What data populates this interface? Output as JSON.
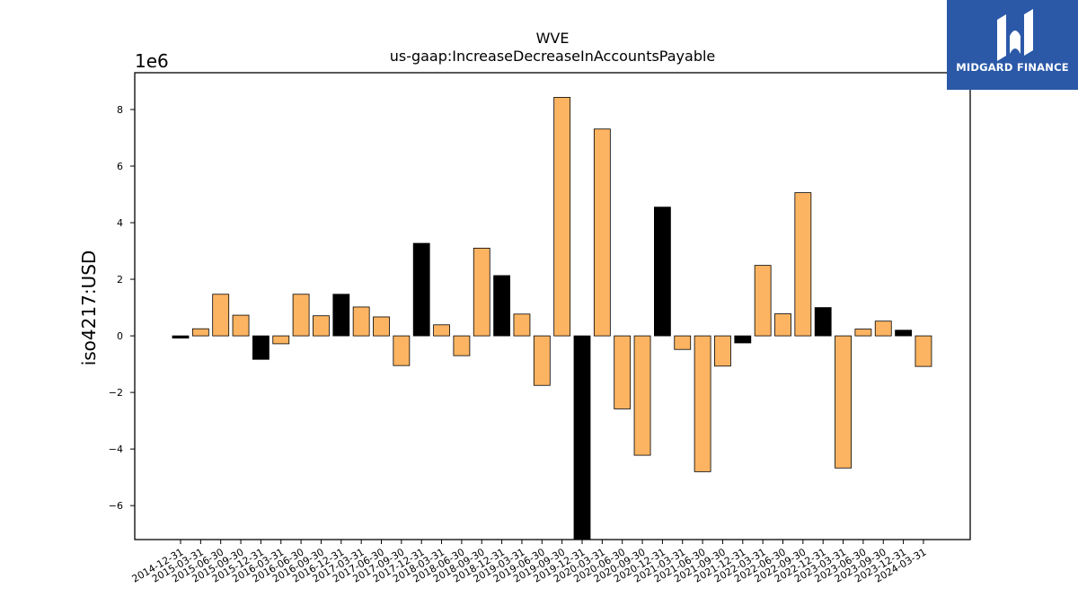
{
  "chart_data": {
    "type": "bar",
    "title": "WVE",
    "subtitle": "us-gaap:IncreaseDecreaseInAccountsPayable",
    "xlabel": "",
    "ylabel": "iso4217:USD",
    "y_multiplier_label": "1e6",
    "ylim": [
      -7.2,
      9.3
    ],
    "yticks": [
      -6,
      -4,
      -2,
      0,
      2,
      4,
      6,
      8
    ],
    "ytick_labels": [
      "−6",
      "−4",
      "−2",
      "0",
      "2",
      "4",
      "6",
      "8"
    ],
    "grid": false,
    "colors": {
      "quarter": "#FDB462",
      "annual": "#000000",
      "edge": "#000000"
    },
    "categories": [
      "2014-12-31",
      "2015-03-31",
      "2015-06-30",
      "2015-09-30",
      "2015-12-31",
      "2016-03-31",
      "2016-06-30",
      "2016-09-30",
      "2016-12-31",
      "2017-03-31",
      "2017-06-30",
      "2017-09-30",
      "2017-12-31",
      "2018-03-31",
      "2018-06-30",
      "2018-09-30",
      "2018-12-31",
      "2019-03-31",
      "2019-06-30",
      "2019-09-30",
      "2019-12-31",
      "2020-03-31",
      "2020-06-30",
      "2020-09-30",
      "2020-12-31",
      "2021-03-31",
      "2021-06-30",
      "2021-09-30",
      "2021-12-31",
      "2022-03-31",
      "2022-06-30",
      "2022-09-30",
      "2022-12-31",
      "2023-03-31",
      "2023-06-30",
      "2023-09-30",
      "2023-12-31",
      "2024-03-31"
    ],
    "values": [
      -0.08,
      0.25,
      1.47,
      0.73,
      -0.83,
      -0.28,
      1.47,
      0.71,
      1.47,
      1.02,
      0.67,
      -1.05,
      3.27,
      0.39,
      -0.7,
      3.1,
      2.13,
      0.77,
      -1.75,
      8.43,
      -7.3,
      7.31,
      -2.58,
      -4.22,
      4.55,
      -0.48,
      -4.8,
      -1.07,
      -0.25,
      2.49,
      0.78,
      5.06,
      1.0,
      -4.67,
      0.24,
      0.52,
      0.2,
      -1.08
    ],
    "bar_colors": [
      "#000000",
      "#FDB462",
      "#FDB462",
      "#FDB462",
      "#000000",
      "#FDB462",
      "#FDB462",
      "#FDB462",
      "#000000",
      "#FDB462",
      "#FDB462",
      "#FDB462",
      "#000000",
      "#FDB462",
      "#FDB462",
      "#FDB462",
      "#000000",
      "#FDB462",
      "#FDB462",
      "#FDB462",
      "#000000",
      "#FDB462",
      "#FDB462",
      "#FDB462",
      "#000000",
      "#FDB462",
      "#FDB462",
      "#FDB462",
      "#000000",
      "#FDB462",
      "#FDB462",
      "#FDB462",
      "#000000",
      "#FDB462",
      "#FDB462",
      "#FDB462",
      "#000000",
      "#FDB462"
    ]
  },
  "logo": {
    "text": "MIDGARD FINANCE",
    "background": "#2B59A8",
    "icon": "midgard-logo-icon"
  }
}
